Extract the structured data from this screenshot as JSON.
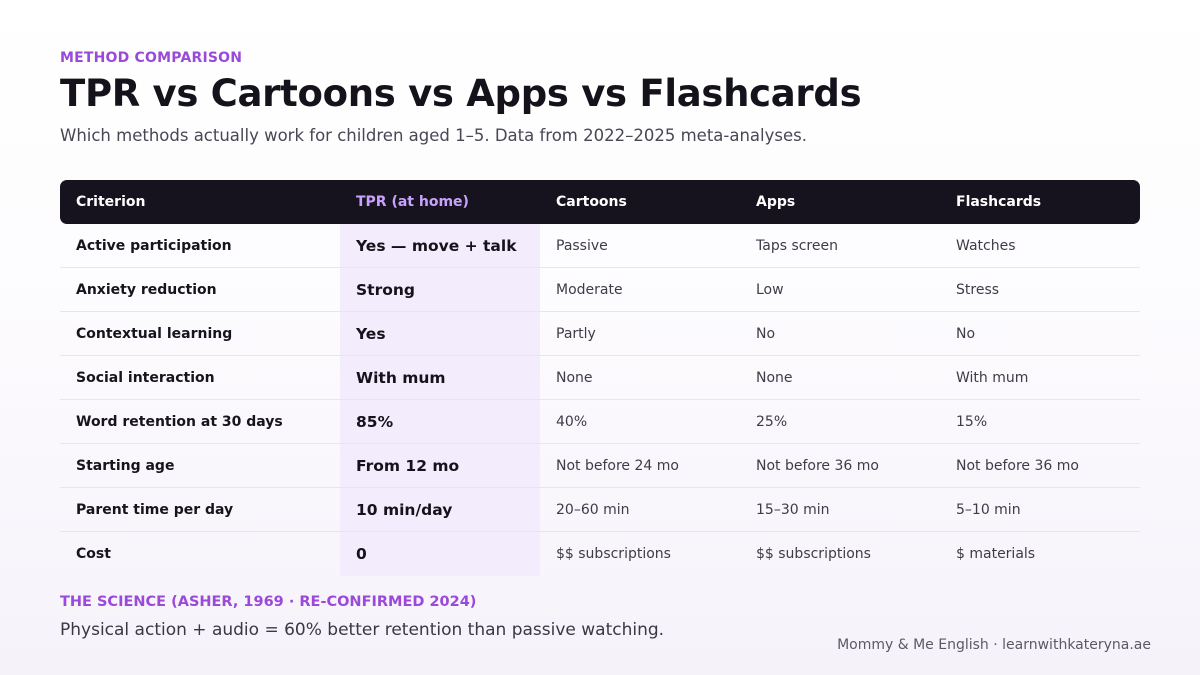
{
  "header": {
    "eyebrow": "METHOD COMPARISON",
    "title": "TPR vs Cartoons vs Apps vs Flashcards",
    "subtitle": "Which methods actually work for children aged 1–5. Data from 2022–2025 meta-analyses."
  },
  "table": {
    "headers": [
      "Criterion",
      "TPR (at home)",
      "Cartoons",
      "Apps",
      "Flashcards"
    ],
    "rows": [
      [
        "Active participation",
        "Yes — move + talk",
        "Passive",
        "Taps screen",
        "Watches"
      ],
      [
        "Anxiety reduction",
        "Strong",
        "Moderate",
        "Low",
        "Stress"
      ],
      [
        "Contextual learning",
        "Yes",
        "Partly",
        "No",
        "No"
      ],
      [
        "Social interaction",
        "With mum",
        "None",
        "None",
        "With mum"
      ],
      [
        "Word retention at 30 days",
        "85%",
        "40%",
        "25%",
        "15%"
      ],
      [
        "Starting age",
        "From 12 mo",
        "Not before 24 mo",
        "Not before 36 mo",
        "Not before 36 mo"
      ],
      [
        "Parent time per day",
        "10 min/day",
        "20–60 min",
        "15–30 min",
        "5–10 min"
      ],
      [
        "Cost",
        "0",
        "$$ subscriptions",
        "$$ subscriptions",
        "$ materials"
      ]
    ]
  },
  "science": {
    "label": "THE SCIENCE (ASHER, 1969 · RE-CONFIRMED 2024)",
    "text": "Physical action + audio = 60% better retention than passive watching."
  },
  "footer": {
    "credit": "Mommy & Me English · learnwithkateryna.ae"
  },
  "colors": {
    "accent": "#9a49d8",
    "header_bg": "#16131e",
    "highlight_column": "#f3ecfc"
  }
}
